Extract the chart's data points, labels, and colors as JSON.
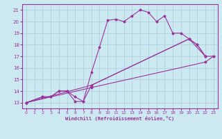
{
  "xlabel": "Windchill (Refroidissement éolien,°C)",
  "bg_color": "#cce8f0",
  "grid_color": "#aaccdd",
  "line_color": "#993399",
  "spine_color": "#993399",
  "xlim": [
    -0.5,
    23.5
  ],
  "ylim": [
    12.5,
    21.5
  ],
  "xticks": [
    0,
    1,
    2,
    3,
    4,
    5,
    6,
    7,
    8,
    9,
    10,
    11,
    12,
    13,
    14,
    15,
    16,
    17,
    18,
    19,
    20,
    21,
    22,
    23
  ],
  "yticks": [
    13,
    14,
    15,
    16,
    17,
    18,
    19,
    20,
    21
  ],
  "lines": [
    {
      "x": [
        0,
        2,
        3,
        4,
        5,
        6,
        7,
        8,
        9,
        10,
        11,
        12,
        13,
        14,
        15,
        16,
        17,
        18,
        19,
        20,
        21,
        22
      ],
      "y": [
        13,
        13.5,
        13.5,
        14,
        14,
        13.1,
        13.1,
        15.6,
        17.8,
        20.1,
        20.2,
        20.0,
        20.5,
        21.0,
        20.8,
        20.0,
        20.5,
        19.0,
        19.0,
        18.5,
        18.0,
        17.0
      ]
    },
    {
      "x": [
        0,
        2,
        3,
        4,
        5,
        6,
        7,
        8,
        20,
        21,
        22
      ],
      "y": [
        13,
        13.5,
        13.5,
        14,
        14,
        13.5,
        13.1,
        14.5,
        18.5,
        18.0,
        17.0
      ]
    },
    {
      "x": [
        0,
        8,
        20,
        22,
        23
      ],
      "y": [
        13,
        14.5,
        18.5,
        17.0,
        17.0
      ]
    },
    {
      "x": [
        0,
        8,
        22,
        23
      ],
      "y": [
        13,
        14.3,
        16.5,
        17.0
      ]
    }
  ]
}
